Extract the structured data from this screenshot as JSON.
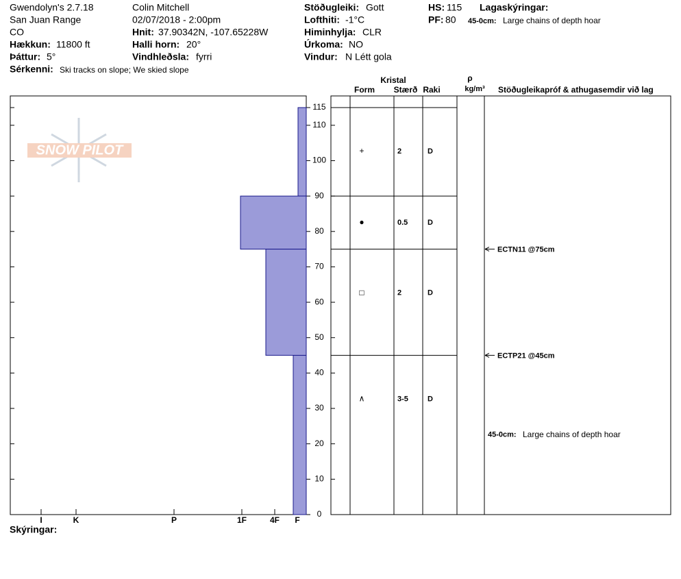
{
  "header": {
    "location": "Gwendolyn's 2.7.18",
    "range": "San Juan Range",
    "state": "CO",
    "observer": "Colin Mitchell",
    "datetime": "02/07/2018 - 2:00pm",
    "fields": [
      {
        "label": "Hækkun:",
        "value": "11800 ft"
      },
      {
        "label": "Þáttur:",
        "value": "5°"
      },
      {
        "label": "Sérkenni:",
        "value": "Ski tracks on slope; We skied slope"
      },
      {
        "label": "Hnit:",
        "value": "37.90342N, -107.65228W"
      },
      {
        "label": "Halli horn:",
        "value": "20°"
      },
      {
        "label": "Vindhleðsla:",
        "value": "fyrri"
      },
      {
        "label": "Stöðugleiki:",
        "value": "Gott"
      },
      {
        "label": "Lofthiti:",
        "value": "-1°C"
      },
      {
        "label": "Himinhylja:",
        "value": "CLR"
      },
      {
        "label": "Úrkoma:",
        "value": "NO"
      },
      {
        "label": "Vindur:",
        "value": "N Létt gola"
      },
      {
        "label": "HS:",
        "value": "115"
      },
      {
        "label": "PF:",
        "value": "80"
      }
    ],
    "layer_notes_title": "Lagaskýringar:",
    "layer_note": {
      "label": "45-0cm:",
      "value": "Large chains of depth hoar"
    }
  },
  "logo": "SNOW PILOT",
  "table": {
    "headers": [
      "Kristal",
      "Form",
      "Stærð",
      "Raki",
      "ρ",
      "kg/m³",
      "Stöðugleikapróf & athugasemdir við lag"
    ]
  },
  "footer": "Skýringar:",
  "chart_data": {
    "type": "bar",
    "color": "#9b9bd9",
    "ylim": [
      0,
      115
    ],
    "yticks": [
      0,
      10,
      20,
      30,
      40,
      50,
      60,
      70,
      80,
      90,
      100,
      110,
      115
    ],
    "xlim": [
      0,
      432
    ],
    "xticks": [
      {
        "value": 387,
        "label": "I"
      },
      {
        "value": 336,
        "label": "K"
      },
      {
        "value": 193,
        "label": "P"
      },
      {
        "value": 94,
        "label": "1F"
      },
      {
        "value": 46,
        "label": "4F"
      },
      {
        "value": 13,
        "label": "F"
      }
    ],
    "layers": [
      {
        "top": 115,
        "bottom": 90,
        "hardness": 12,
        "form": "+",
        "size": "2",
        "moisture": "D"
      },
      {
        "top": 90,
        "bottom": 75,
        "hardness": 96,
        "form": "●",
        "size": "0.5",
        "moisture": "D"
      },
      {
        "top": 75,
        "bottom": 45,
        "hardness": 59,
        "form": "□",
        "size": "2",
        "moisture": "D"
      },
      {
        "top": 45,
        "bottom": 0,
        "hardness": 19,
        "form": "∧",
        "size": "3-5",
        "moisture": "D",
        "comment_label": "45-0cm:",
        "comment": "Large chains of depth hoar"
      }
    ],
    "tests": [
      {
        "depth": 75,
        "label": "ECTN11 @75cm"
      },
      {
        "depth": 45,
        "label": "ECTP21 @45cm"
      }
    ]
  }
}
